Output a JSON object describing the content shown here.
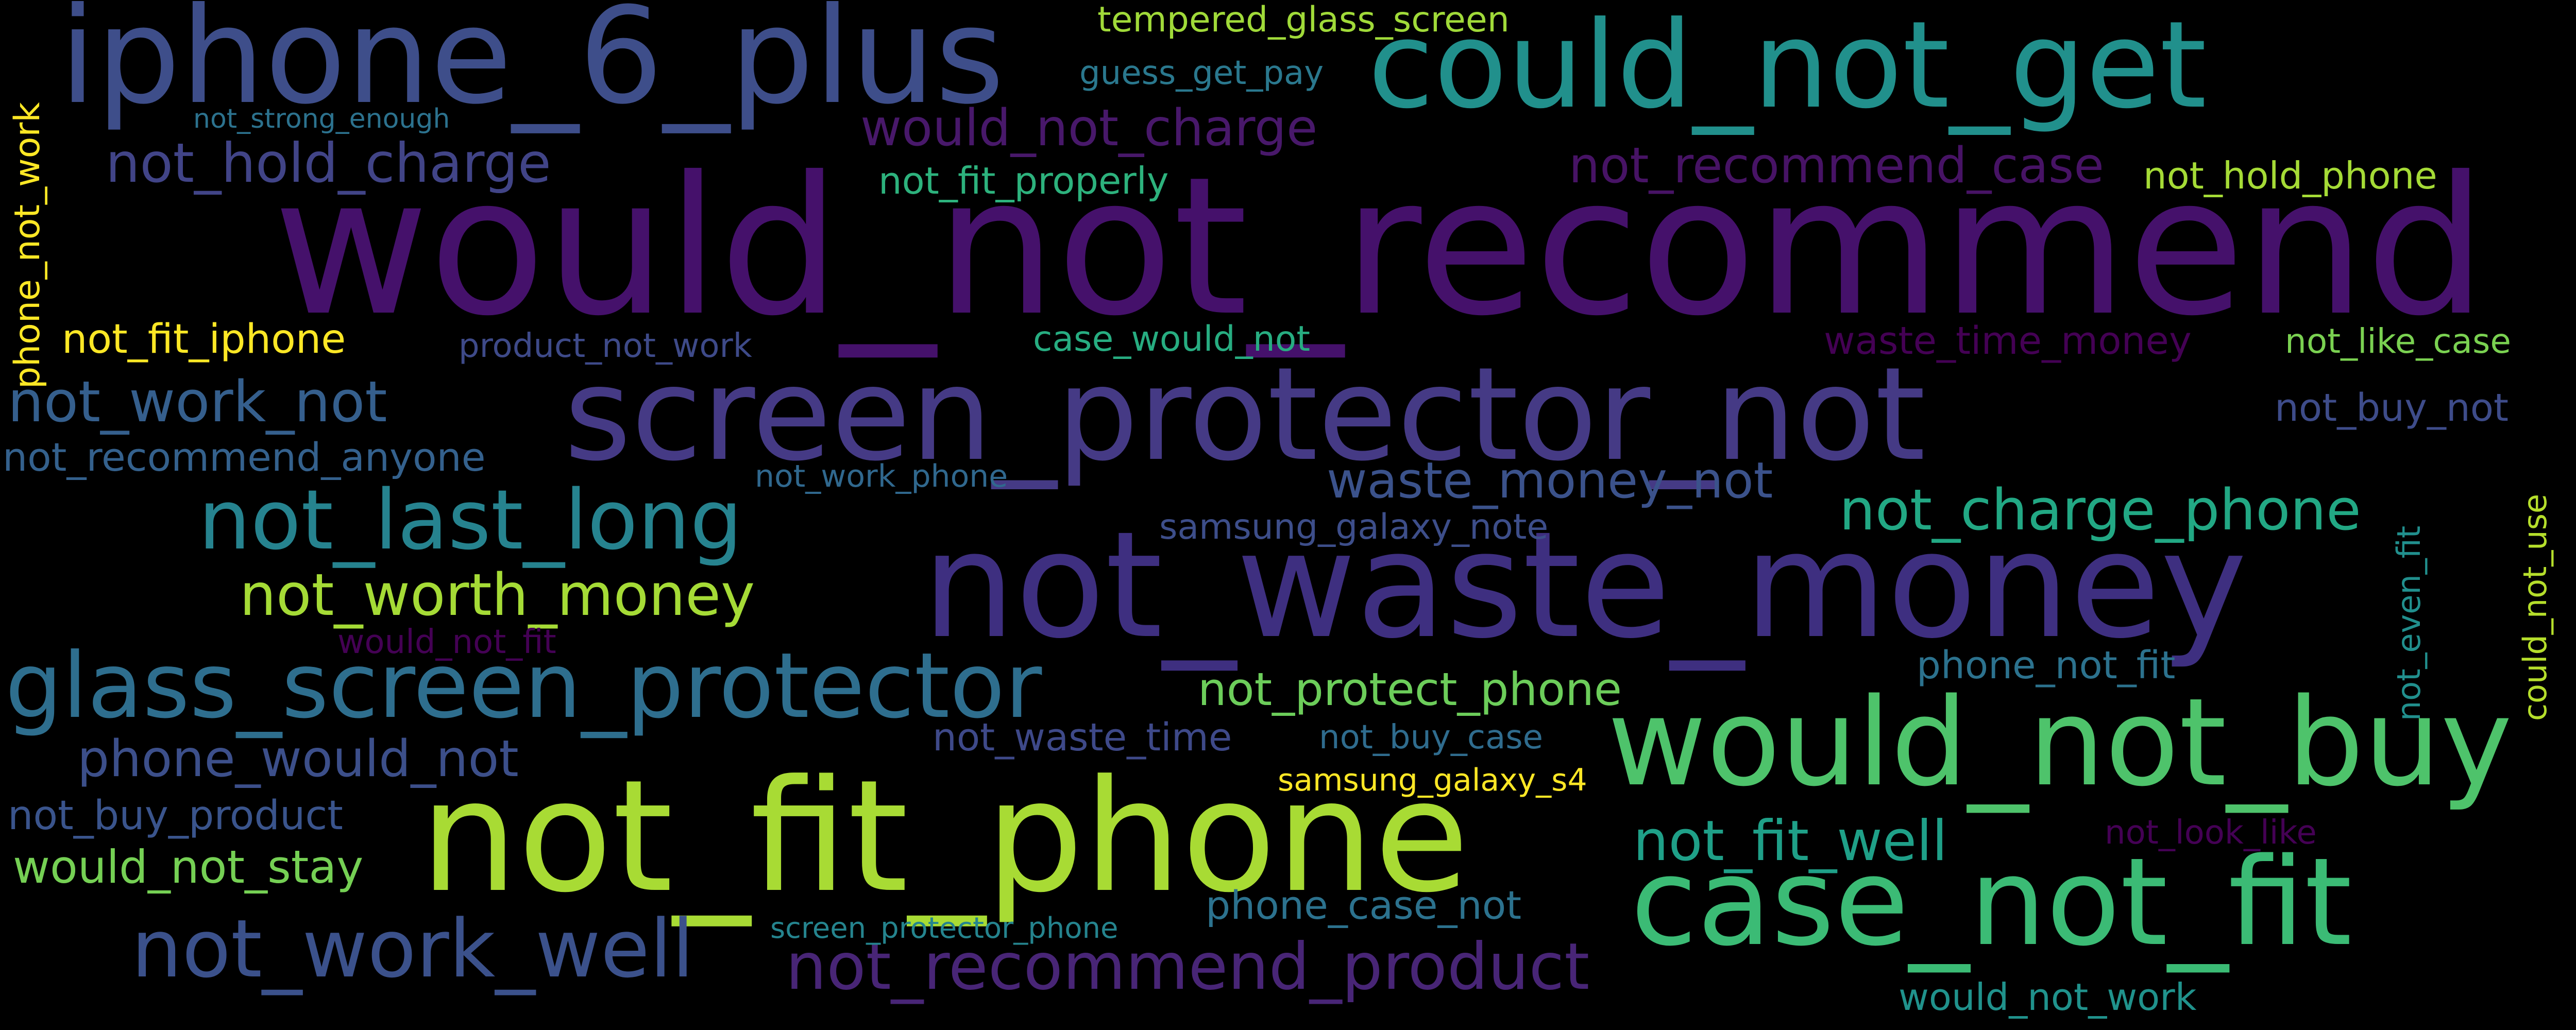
{
  "words": [
    {
      "text": "would_not_recommend",
      "color": "#45116b"
    },
    {
      "text": "not_waste_money",
      "color": "#3e2f80"
    },
    {
      "text": "screen_protector_not",
      "color": "#453a85"
    },
    {
      "text": "iphone_6_plus",
      "color": "#3e4e8a"
    },
    {
      "text": "could_not_get",
      "color": "#21908c"
    },
    {
      "text": "not_fit_phone",
      "color": "#a8db34"
    },
    {
      "text": "would_not_buy",
      "color": "#4ec36b"
    },
    {
      "text": "case_not_fit",
      "color": "#3bbb75"
    },
    {
      "text": "glass_screen_protector",
      "color": "#2e6e8e"
    },
    {
      "text": "not_last_long",
      "color": "#26838f"
    },
    {
      "text": "not_work_well",
      "color": "#3b518b"
    },
    {
      "text": "not_recommend_product",
      "color": "#482576"
    },
    {
      "text": "not_worth_money",
      "color": "#a5db36"
    },
    {
      "text": "not_work_not",
      "color": "#355f8d"
    },
    {
      "text": "phone_would_not",
      "color": "#3c4f8a"
    },
    {
      "text": "not_hold_charge",
      "color": "#414487"
    },
    {
      "text": "would_not_charge",
      "color": "#48186a"
    },
    {
      "text": "not_recommend_case",
      "color": "#471365"
    },
    {
      "text": "not_fit_well",
      "color": "#1fa088"
    },
    {
      "text": "not_charge_phone",
      "color": "#22a884"
    },
    {
      "text": "waste_money_not",
      "color": "#3b528b"
    },
    {
      "text": "not_protect_phone",
      "color": "#6ccd5a"
    },
    {
      "text": "would_not_stay",
      "color": "#75d054"
    },
    {
      "text": "phone_case_not",
      "color": "#2c728e"
    },
    {
      "text": "not_buy_product",
      "color": "#3a548c"
    },
    {
      "text": "not_fit_iphone",
      "color": "#fde725"
    },
    {
      "text": "not_recommend_anyone",
      "color": "#34618d"
    },
    {
      "text": "tempered_glass_screen",
      "color": "#a0da39"
    },
    {
      "text": "guess_get_pay",
      "color": "#2a788e"
    },
    {
      "text": "not_strong_enough",
      "color": "#2c728e"
    },
    {
      "text": "not_fit_properly",
      "color": "#2db27d"
    },
    {
      "text": "not_hold_phone",
      "color": "#a5db36"
    },
    {
      "text": "phone_not_work",
      "color": "#fde725"
    },
    {
      "text": "product_not_work",
      "color": "#3e4a89"
    },
    {
      "text": "case_would_not",
      "color": "#27ad81"
    },
    {
      "text": "waste_time_money",
      "color": "#440154"
    },
    {
      "text": "not_like_case",
      "color": "#7ad151"
    },
    {
      "text": "not_buy_not",
      "color": "#3e4c8a"
    },
    {
      "text": "not_work_phone",
      "color": "#30688e"
    },
    {
      "text": "samsung_galaxy_note",
      "color": "#3d4e8a"
    },
    {
      "text": "would_not_fit",
      "color": "#440154"
    },
    {
      "text": "not_waste_time",
      "color": "#3e4989"
    },
    {
      "text": "not_buy_case",
      "color": "#2f6c8e"
    },
    {
      "text": "samsung_galaxy_s4",
      "color": "#fde725"
    },
    {
      "text": "phone_not_fit",
      "color": "#2c728e"
    },
    {
      "text": "not_look_like",
      "color": "#440154"
    },
    {
      "text": "screen_protector_phone",
      "color": "#25848e"
    },
    {
      "text": "would_not_work",
      "color": "#20928c"
    },
    {
      "text": "not_even_fit",
      "color": "#218f8d"
    },
    {
      "text": "could_not_use",
      "color": "#b5de2b"
    }
  ]
}
